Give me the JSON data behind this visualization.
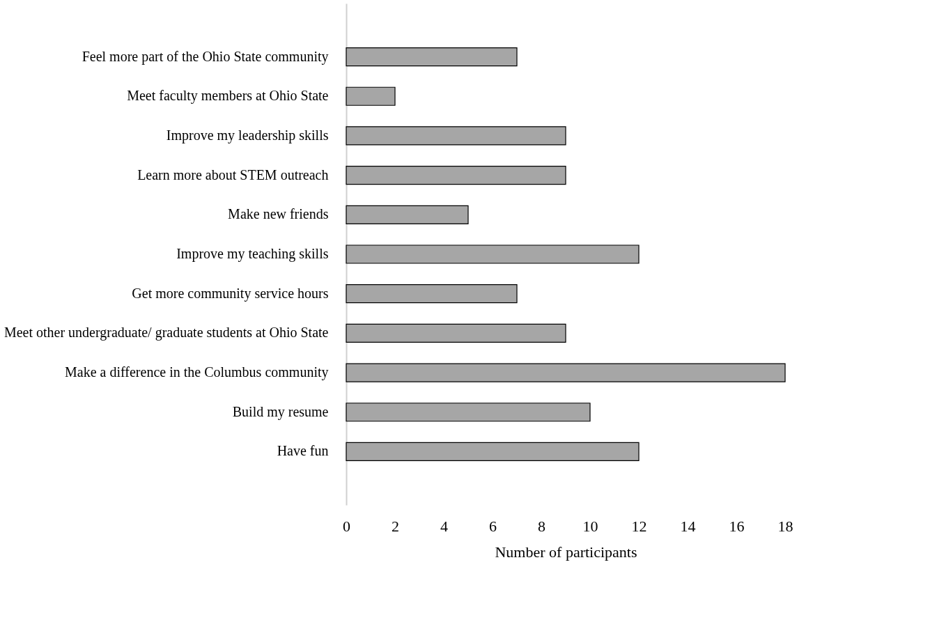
{
  "chart_data": {
    "type": "bar",
    "orientation": "horizontal",
    "xlabel": "Number of participants",
    "categories": [
      "Feel more part of the Ohio State community",
      "Meet faculty members at Ohio State",
      "Improve my leadership skills",
      "Learn more about STEM outreach",
      "Make new friends",
      "Improve my teaching skills",
      "Get more community service hours",
      "Meet other undergraduate/ graduate students at Ohio State",
      "Make a difference in the Columbus community",
      "Build my resume",
      "Have fun"
    ],
    "values": [
      7,
      2,
      9,
      9,
      5,
      12,
      7,
      9,
      18,
      10,
      12
    ],
    "color": "#a6a6a6",
    "xlim": [
      0,
      18
    ],
    "xticks": [
      0,
      2,
      4,
      6,
      8,
      10,
      12,
      14,
      16,
      18
    ],
    "grid": false
  }
}
